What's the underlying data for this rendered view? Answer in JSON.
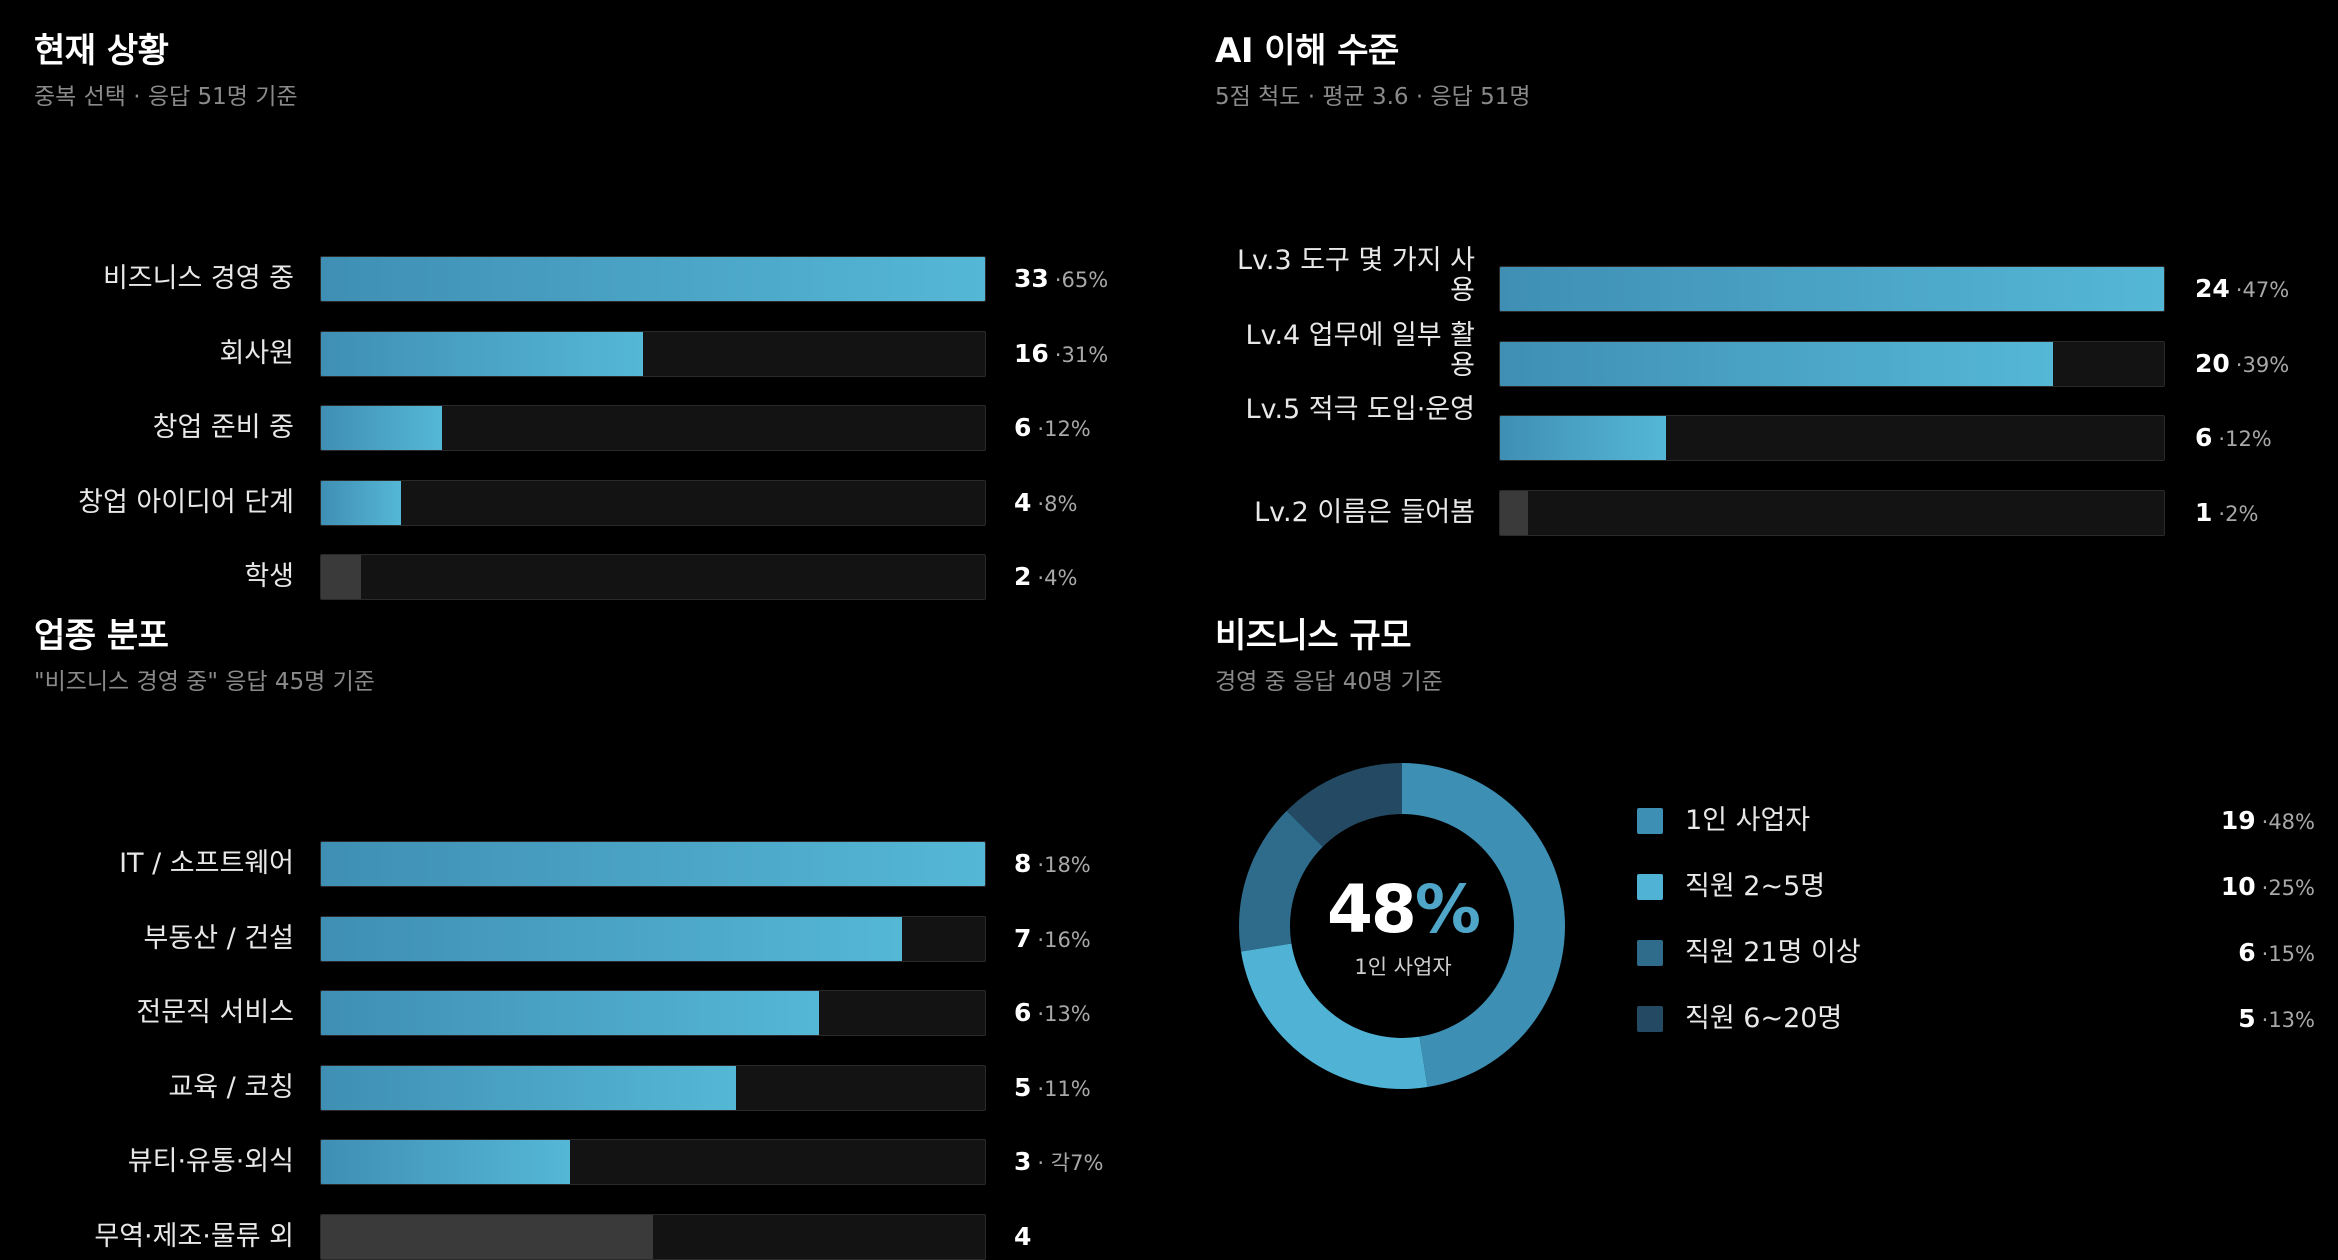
{
  "panels": {
    "status": {
      "title": "현재 상황",
      "subtitle": "중복 선택 · 응답 51명 기준"
    },
    "ai": {
      "title": "AI 이해 수준",
      "subtitle": "5점 척도 · 평균 3.6 · 응답 51명"
    },
    "industry": {
      "title": "업종 분포",
      "subtitle": "\"비즈니스 경영 중\" 응답 45명 기준"
    },
    "size": {
      "title": "비즈니스 규모",
      "subtitle": "경영 중 응답 40명 기준",
      "center_value": "48",
      "center_sign": "%",
      "center_label": "1인 사업자"
    }
  },
  "colors": {
    "bar_gradient_start": "#3f8fb4",
    "bar_gradient_end": "#55b7d6",
    "bar_muted": "#3a3a3a",
    "track": "#131313",
    "slice_1": "#3d8fb3",
    "slice_2": "#50b3d5",
    "slice_3": "#2f6c8c",
    "slice_4": "#234a62"
  },
  "chart_data": [
    {
      "type": "bar",
      "orientation": "horizontal",
      "title": "현재 상황",
      "categories": [
        "비즈니스 경영 중",
        "회사원",
        "창업 준비 중",
        "창업 아이디어 단계",
        "학생"
      ],
      "values": [
        33,
        16,
        6,
        4,
        2
      ],
      "value_labels": [
        "33",
        "16",
        "6",
        "4",
        "2"
      ],
      "percent_labels": [
        "·65%",
        "·31%",
        "·12%",
        "·8%",
        "·4%"
      ],
      "muted": [
        false,
        false,
        false,
        false,
        true
      ],
      "xlim": [
        0,
        33
      ]
    },
    {
      "type": "bar",
      "orientation": "horizontal",
      "title": "AI 이해 수준",
      "categories": [
        "Lv.3 도구 몇 가지 사용",
        "Lv.4 업무에 일부 활용",
        "Lv.5 적극 도입·운영",
        "Lv.2 이름은 들어봄"
      ],
      "values": [
        24,
        20,
        6,
        1
      ],
      "value_labels": [
        "24",
        "20",
        "6",
        "1"
      ],
      "percent_labels": [
        "·47%",
        "·39%",
        "·12%",
        "·2%"
      ],
      "muted": [
        false,
        false,
        false,
        true
      ],
      "xlim": [
        0,
        24
      ]
    },
    {
      "type": "bar",
      "orientation": "horizontal",
      "title": "업종 분포",
      "categories": [
        "IT / 소프트웨어",
        "부동산 / 건설",
        "전문직 서비스",
        "교육 / 코칭",
        "뷰티·유통·외식",
        "무역·제조·물류 외"
      ],
      "values": [
        8,
        7,
        6,
        5,
        3,
        4
      ],
      "value_labels": [
        "8",
        "7",
        "6",
        "5",
        "3",
        "4"
      ],
      "percent_labels": [
        "·18%",
        "·16%",
        "·13%",
        "·11%",
        "· 각7%",
        ""
      ],
      "muted": [
        false,
        false,
        false,
        false,
        false,
        true
      ],
      "xlim": [
        0,
        8
      ]
    },
    {
      "type": "pie",
      "title": "비즈니스 규모",
      "categories": [
        "1인 사업자",
        "직원 2~5명",
        "직원 21명 이상",
        "직원 6~20명"
      ],
      "values": [
        19,
        10,
        6,
        5
      ],
      "value_labels": [
        "19",
        "10",
        "6",
        "5"
      ],
      "percent_labels": [
        "·48%",
        "·25%",
        "·15%",
        "·13%"
      ],
      "percents": [
        48,
        25,
        15,
        13
      ]
    }
  ]
}
